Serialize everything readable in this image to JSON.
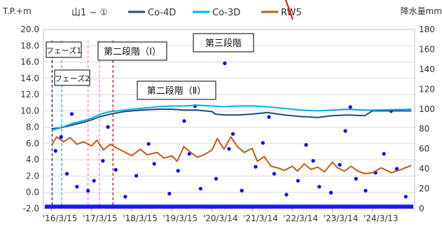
{
  "chart_data": {
    "type": "line",
    "title": "山1 − ①",
    "ylabel_left": "T.P.+m",
    "ylabel_right": "降水量mm",
    "ylim_left": [
      -2.0,
      20.0
    ],
    "ylim_right": [
      0,
      180
    ],
    "yticks_left": [
      "20.0",
      "18.0",
      "16.0",
      "14.0",
      "12.0",
      "10.0",
      "8.0",
      "6.0",
      "4.0",
      "2.0",
      "0.0",
      "-2.0"
    ],
    "yticks_right": [
      "180",
      "160",
      "140",
      "120",
      "100",
      "80",
      "60",
      "40",
      "20",
      "0"
    ],
    "x_dates": [
      "2016-03-15",
      "2017-03-15",
      "2018-03-15",
      "2019-03-15",
      "2020-03-14",
      "2021-03-14",
      "2022-03-14",
      "2023-03-14",
      "2024-03-13"
    ],
    "x_tick_labels": [
      "'16/3/15",
      "'17/3/15",
      "'18/3/15",
      "'19/3/15",
      "'20/3/14",
      "'21/3/14",
      "'22/3/14",
      "'23/3/14",
      "'24/3/13"
    ],
    "legend_position": "top",
    "grid": true,
    "series": [
      {
        "name": "Co-4D",
        "color": "#1f4e79",
        "axis": "left",
        "points": [
          [
            "2016-03-15",
            7.8
          ],
          [
            "2016-06-01",
            7.9
          ],
          [
            "2016-10-01",
            8.3
          ],
          [
            "2017-01-01",
            8.6
          ],
          [
            "2017-03-15",
            8.9
          ],
          [
            "2017-06-01",
            9.3
          ],
          [
            "2017-09-01",
            9.6
          ],
          [
            "2018-01-01",
            9.9
          ],
          [
            "2018-06-01",
            10.1
          ],
          [
            "2018-11-01",
            10.2
          ],
          [
            "2019-03-15",
            10.2
          ],
          [
            "2019-07-01",
            10.1
          ],
          [
            "2019-11-01",
            10.1
          ],
          [
            "2020-03-14",
            9.9
          ],
          [
            "2020-04-15",
            9.6
          ],
          [
            "2020-07-01",
            9.5
          ],
          [
            "2020-11-01",
            9.5
          ],
          [
            "2021-03-14",
            9.6
          ],
          [
            "2021-08-01",
            9.8
          ],
          [
            "2022-01-01",
            9.5
          ],
          [
            "2022-06-01",
            9.3
          ],
          [
            "2022-11-01",
            9.2
          ],
          [
            "2023-03-14",
            9.4
          ],
          [
            "2023-08-01",
            9.5
          ],
          [
            "2024-01-01",
            9.4
          ],
          [
            "2024-03-13",
            10.0
          ],
          [
            "2025-03-01",
            10.0
          ]
        ]
      },
      {
        "name": "Co-3D",
        "color": "#00b0f0",
        "axis": "left",
        "points": [
          [
            "2016-03-15",
            7.6
          ],
          [
            "2016-06-01",
            7.9
          ],
          [
            "2016-10-01",
            8.5
          ],
          [
            "2017-01-01",
            8.8
          ],
          [
            "2017-03-15",
            9.1
          ],
          [
            "2017-06-01",
            9.6
          ],
          [
            "2017-09-01",
            9.9
          ],
          [
            "2018-01-01",
            10.1
          ],
          [
            "2018-06-01",
            10.3
          ],
          [
            "2018-11-01",
            10.5
          ],
          [
            "2019-03-15",
            10.6
          ],
          [
            "2019-07-01",
            10.6
          ],
          [
            "2019-11-01",
            10.7
          ],
          [
            "2020-03-14",
            10.6
          ],
          [
            "2020-07-01",
            10.5
          ],
          [
            "2020-11-01",
            10.6
          ],
          [
            "2021-03-14",
            10.6
          ],
          [
            "2021-08-01",
            10.5
          ],
          [
            "2022-01-01",
            10.3
          ],
          [
            "2022-06-01",
            10.1
          ],
          [
            "2022-11-01",
            10.0
          ],
          [
            "2023-03-14",
            10.1
          ],
          [
            "2023-08-01",
            10.2
          ],
          [
            "2024-01-01",
            10.1
          ],
          [
            "2024-03-13",
            10.1
          ],
          [
            "2025-03-01",
            10.2
          ]
        ]
      },
      {
        "name": "RW5",
        "color": "#c55a11",
        "axis": "left",
        "points": [
          [
            "2016-03-15",
            5.8
          ],
          [
            "2016-05-01",
            6.8
          ],
          [
            "2016-07-01",
            6.2
          ],
          [
            "2016-09-01",
            6.7
          ],
          [
            "2016-11-01",
            5.9
          ],
          [
            "2017-01-01",
            6.2
          ],
          [
            "2017-03-15",
            5.7
          ],
          [
            "2017-05-01",
            6.4
          ],
          [
            "2017-07-01",
            5.2
          ],
          [
            "2017-09-01",
            5.9
          ],
          [
            "2017-11-01",
            5.4
          ],
          [
            "2018-01-01",
            5.0
          ],
          [
            "2018-03-15",
            4.5
          ],
          [
            "2018-06-01",
            5.3
          ],
          [
            "2018-08-01",
            4.6
          ],
          [
            "2018-11-01",
            4.9
          ],
          [
            "2019-01-01",
            4.2
          ],
          [
            "2019-03-15",
            4.5
          ],
          [
            "2019-05-01",
            3.8
          ],
          [
            "2019-07-01",
            5.6
          ],
          [
            "2019-09-01",
            4.9
          ],
          [
            "2019-11-01",
            4.3
          ],
          [
            "2020-01-01",
            4.6
          ],
          [
            "2020-03-14",
            5.2
          ],
          [
            "2020-05-01",
            6.6
          ],
          [
            "2020-07-01",
            5.3
          ],
          [
            "2020-09-01",
            6.8
          ],
          [
            "2020-11-01",
            5.6
          ],
          [
            "2021-01-01",
            4.9
          ],
          [
            "2021-03-14",
            5.4
          ],
          [
            "2021-05-01",
            3.8
          ],
          [
            "2021-07-01",
            4.4
          ],
          [
            "2021-09-01",
            3.2
          ],
          [
            "2021-11-01",
            3.0
          ],
          [
            "2022-01-01",
            2.7
          ],
          [
            "2022-03-14",
            3.2
          ],
          [
            "2022-05-01",
            2.6
          ],
          [
            "2022-07-01",
            3.5
          ],
          [
            "2022-09-01",
            2.8
          ],
          [
            "2022-11-01",
            3.1
          ],
          [
            "2023-01-01",
            2.5
          ],
          [
            "2023-03-14",
            3.7
          ],
          [
            "2023-05-01",
            3.0
          ],
          [
            "2023-07-01",
            2.6
          ],
          [
            "2023-09-01",
            3.2
          ],
          [
            "2023-11-01",
            2.6
          ],
          [
            "2024-01-01",
            2.3
          ],
          [
            "2024-03-13",
            2.4
          ],
          [
            "2024-06-01",
            3.0
          ],
          [
            "2024-09-01",
            2.4
          ],
          [
            "2024-12-01",
            2.8
          ],
          [
            "2025-03-01",
            3.3
          ]
        ]
      },
      {
        "name": "降水量",
        "color": "#0000ff",
        "axis": "right",
        "type": "scatter",
        "points": [
          [
            "2016-04-20",
            58
          ],
          [
            "2016-06-10",
            72
          ],
          [
            "2016-08-02",
            35
          ],
          [
            "2016-09-15",
            95
          ],
          [
            "2016-11-01",
            22
          ],
          [
            "2017-02-10",
            18
          ],
          [
            "2017-04-05",
            28
          ],
          [
            "2017-06-25",
            48
          ],
          [
            "2017-08-10",
            82
          ],
          [
            "2017-10-20",
            39
          ],
          [
            "2018-01-15",
            12
          ],
          [
            "2018-04-25",
            33
          ],
          [
            "2018-06-30",
            124
          ],
          [
            "2018-08-15",
            65
          ],
          [
            "2018-10-05",
            45
          ],
          [
            "2019-02-20",
            15
          ],
          [
            "2019-05-10",
            38
          ],
          [
            "2019-07-05",
            88
          ],
          [
            "2019-08-20",
            55
          ],
          [
            "2019-10-12",
            103
          ],
          [
            "2019-12-01",
            20
          ],
          [
            "2020-04-20",
            30
          ],
          [
            "2020-07-08",
            146
          ],
          [
            "2020-08-15",
            60
          ],
          [
            "2020-09-20",
            75
          ],
          [
            "2020-12-10",
            18
          ],
          [
            "2021-04-15",
            42
          ],
          [
            "2021-06-20",
            66
          ],
          [
            "2021-08-14",
            92
          ],
          [
            "2021-10-01",
            35
          ],
          [
            "2022-01-20",
            14
          ],
          [
            "2022-05-05",
            28
          ],
          [
            "2022-07-18",
            64
          ],
          [
            "2022-09-20",
            48
          ],
          [
            "2022-11-15",
            22
          ],
          [
            "2023-03-01",
            16
          ],
          [
            "2023-05-20",
            44
          ],
          [
            "2023-07-10",
            78
          ],
          [
            "2023-08-25",
            102
          ],
          [
            "2023-10-15",
            30
          ],
          [
            "2024-01-10",
            18
          ],
          [
            "2024-04-10",
            36
          ],
          [
            "2024-06-25",
            55
          ],
          [
            "2024-08-30",
            98
          ],
          [
            "2024-10-20",
            40
          ],
          [
            "2025-01-10",
            12
          ]
        ]
      }
    ],
    "annotations": [
      {
        "label": "フェーズ1",
        "date": "2016-03-20",
        "color": "#002060",
        "style": "dashed"
      },
      {
        "label": "フェーズ2",
        "date": "2016-06-15",
        "color": "#00b0f0",
        "style": "dashed"
      },
      {
        "label": "",
        "date": "2017-02-10",
        "color": "#ff66ff",
        "style": "dashed"
      },
      {
        "label": "",
        "date": "2017-05-25",
        "color": "#ff66ff",
        "style": "dashed"
      },
      {
        "label": "第二段階（Ⅰ）",
        "date": "2017-09-25",
        "color": "#c00000",
        "style": "dashed"
      },
      {
        "label": "第二段階（Ⅱ）",
        "date": "",
        "color": "",
        "style": ""
      },
      {
        "label": "第三段階",
        "date": "",
        "color": "",
        "style": ""
      }
    ]
  }
}
